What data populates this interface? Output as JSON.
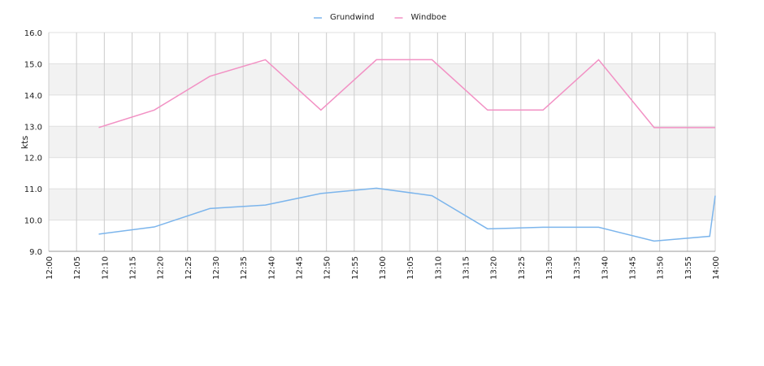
{
  "chart_data": {
    "type": "line",
    "y_label": "kts",
    "x": [
      "12:09",
      "12:19",
      "12:29",
      "12:39",
      "12:49",
      "12:59",
      "13:09",
      "13:19",
      "13:29",
      "13:39",
      "13:49",
      "13:59",
      "14:00"
    ],
    "series": [
      {
        "name": "Grundwind",
        "color": "#7cb5ec",
        "values": [
          9.55,
          9.78,
          10.37,
          10.48,
          10.85,
          11.02,
          10.78,
          9.72,
          9.77,
          9.77,
          9.33,
          9.48,
          10.78
        ]
      },
      {
        "name": "Windboe",
        "color": "#f291c4",
        "values": [
          12.96,
          13.52,
          14.6,
          15.13,
          13.52,
          15.13,
          15.13,
          13.52,
          13.52,
          15.13,
          12.96,
          12.96,
          12.96
        ]
      }
    ],
    "xlim": [
      "12:00",
      "14:00"
    ],
    "xticks": [
      "12:00",
      "12:05",
      "12:10",
      "12:15",
      "12:20",
      "12:25",
      "12:30",
      "12:35",
      "12:40",
      "12:45",
      "12:50",
      "12:55",
      "13:00",
      "13:05",
      "13:10",
      "13:15",
      "13:20",
      "13:25",
      "13:30",
      "13:35",
      "13:40",
      "13:45",
      "13:50",
      "13:55",
      "14:00"
    ],
    "ylim": [
      9,
      16
    ],
    "yticks": [
      {
        "value": 9,
        "label": "9.0"
      },
      {
        "value": 10,
        "label": "10.0"
      },
      {
        "value": 11,
        "label": "11.0"
      },
      {
        "value": 12,
        "label": "12.0"
      },
      {
        "value": 13,
        "label": "13.0"
      },
      {
        "value": 14,
        "label": "14.0"
      },
      {
        "value": 15,
        "label": "15.0"
      },
      {
        "value": 16,
        "label": "16.0"
      }
    ],
    "grid": true,
    "legend": "top"
  }
}
